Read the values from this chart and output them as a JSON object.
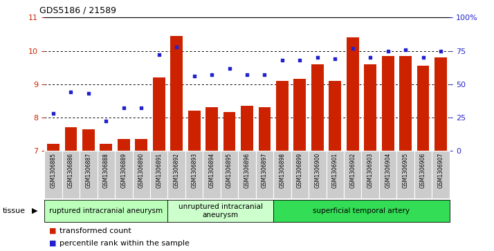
{
  "title": "GDS5186 / 21589",
  "samples": [
    "GSM1306885",
    "GSM1306886",
    "GSM1306887",
    "GSM1306888",
    "GSM1306889",
    "GSM1306890",
    "GSM1306891",
    "GSM1306892",
    "GSM1306893",
    "GSM1306894",
    "GSM1306895",
    "GSM1306896",
    "GSM1306897",
    "GSM1306898",
    "GSM1306899",
    "GSM1306900",
    "GSM1306901",
    "GSM1306902",
    "GSM1306903",
    "GSM1306904",
    "GSM1306905",
    "GSM1306906",
    "GSM1306907"
  ],
  "transformed_count": [
    7.2,
    7.7,
    7.65,
    7.2,
    7.35,
    7.35,
    9.2,
    10.45,
    8.2,
    8.3,
    8.15,
    8.35,
    8.3,
    9.1,
    9.15,
    9.6,
    9.1,
    10.4,
    9.6,
    9.85,
    9.85,
    9.55,
    9.8
  ],
  "percentile_rank": [
    28,
    44,
    43,
    22,
    32,
    32,
    72,
    78,
    56,
    57,
    62,
    57,
    57,
    68,
    68,
    70,
    69,
    77,
    70,
    75,
    76,
    70,
    75
  ],
  "ylim_left": [
    7,
    11
  ],
  "ylim_right": [
    0,
    100
  ],
  "yticks_left": [
    7,
    8,
    9,
    10,
    11
  ],
  "yticks_right": [
    0,
    25,
    50,
    75,
    100
  ],
  "ytick_labels_right": [
    "0",
    "25",
    "50",
    "75",
    "100%"
  ],
  "bar_color": "#cc2200",
  "dot_color": "#2222cc",
  "plot_bg_color": "#ffffff",
  "groups": [
    {
      "label": "ruptured intracranial aneurysm",
      "start": 0,
      "end": 7,
      "color": "#bbffbb"
    },
    {
      "label": "unruptured intracranial\naneurysm",
      "start": 7,
      "end": 13,
      "color": "#ccffcc"
    },
    {
      "label": "superficial temporal artery",
      "start": 13,
      "end": 23,
      "color": "#33dd55"
    }
  ],
  "tissue_label": "tissue",
  "legend_bar_label": "transformed count",
  "legend_dot_label": "percentile rank within the sample",
  "left_axis_color": "#cc2200",
  "right_axis_color": "#2222cc",
  "cell_bg": "#cccccc",
  "cell_border": "#ffffff"
}
